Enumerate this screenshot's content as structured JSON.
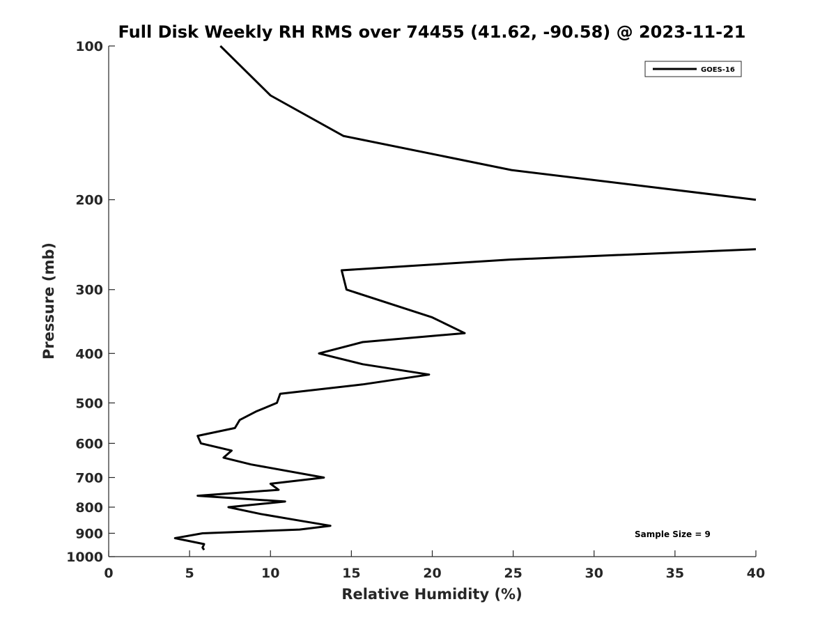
{
  "chart_data": {
    "type": "line",
    "title": "Full Disk Weekly RH RMS over 74455 (41.62, -90.58) @ 2023-11-21",
    "xlabel": "Relative Humidity (%)",
    "ylabel": "Pressure (mb)",
    "xlim": [
      0,
      40
    ],
    "ylim": [
      100,
      1000
    ],
    "y_scale": "log",
    "y_reversed": true,
    "x_ticks": [
      0,
      5,
      10,
      15,
      20,
      25,
      30,
      35,
      40
    ],
    "y_ticks": [
      100,
      200,
      300,
      400,
      500,
      600,
      700,
      800,
      900,
      1000
    ],
    "grid": false,
    "legend_position": "top-right",
    "annotation": "Sample Size = 9",
    "series": [
      {
        "name": "GOES-16",
        "color": "#000000",
        "segments": [
          [
            {
              "x": 6.9,
              "y": 100
            },
            {
              "x": 10.0,
              "y": 125
            },
            {
              "x": 14.5,
              "y": 150
            },
            {
              "x": 24.9,
              "y": 175
            },
            {
              "x": 40.0,
              "y": 200
            }
          ],
          [
            {
              "x": 40.0,
              "y": 250
            },
            {
              "x": 24.8,
              "y": 262
            },
            {
              "x": 14.4,
              "y": 275
            },
            {
              "x": 14.7,
              "y": 300
            },
            {
              "x": 20.0,
              "y": 340
            },
            {
              "x": 22.0,
              "y": 365
            },
            {
              "x": 15.7,
              "y": 380
            },
            {
              "x": 13.0,
              "y": 400
            },
            {
              "x": 15.7,
              "y": 420
            },
            {
              "x": 19.8,
              "y": 440
            },
            {
              "x": 15.7,
              "y": 460
            },
            {
              "x": 10.6,
              "y": 480
            },
            {
              "x": 10.4,
              "y": 500
            },
            {
              "x": 9.1,
              "y": 520
            },
            {
              "x": 8.1,
              "y": 540
            },
            {
              "x": 7.8,
              "y": 560
            },
            {
              "x": 5.5,
              "y": 580
            },
            {
              "x": 5.7,
              "y": 600
            },
            {
              "x": 7.6,
              "y": 620
            },
            {
              "x": 7.1,
              "y": 640
            },
            {
              "x": 8.8,
              "y": 660
            },
            {
              "x": 13.3,
              "y": 700
            },
            {
              "x": 10.0,
              "y": 720
            },
            {
              "x": 10.5,
              "y": 740
            },
            {
              "x": 5.5,
              "y": 760
            },
            {
              "x": 10.9,
              "y": 780
            },
            {
              "x": 7.4,
              "y": 800
            },
            {
              "x": 9.4,
              "y": 825
            },
            {
              "x": 11.8,
              "y": 850
            },
            {
              "x": 13.7,
              "y": 870
            },
            {
              "x": 11.8,
              "y": 885
            },
            {
              "x": 5.8,
              "y": 900
            },
            {
              "x": 4.1,
              "y": 920
            },
            {
              "x": 5.9,
              "y": 945
            },
            {
              "x": 5.8,
              "y": 960
            },
            {
              "x": 5.9,
              "y": 970
            }
          ]
        ]
      }
    ]
  }
}
